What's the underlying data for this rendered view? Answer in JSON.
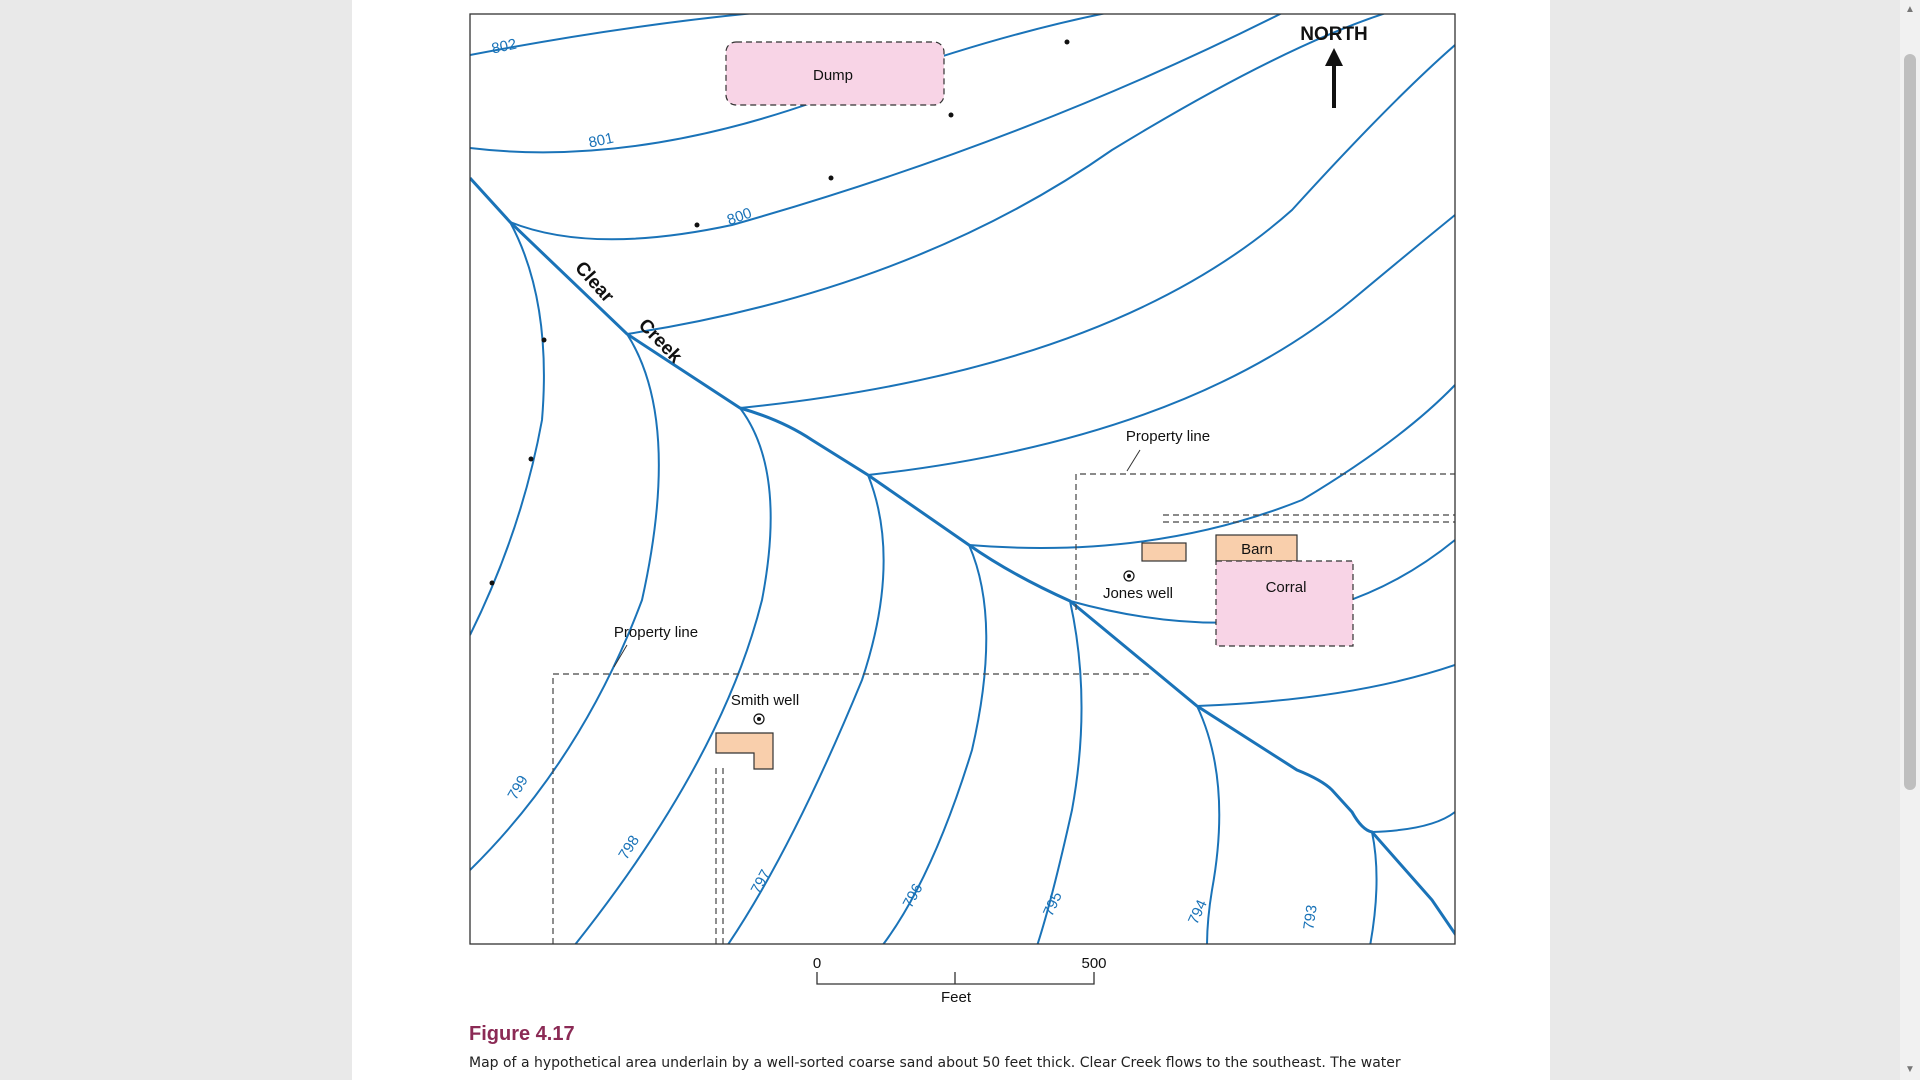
{
  "map": {
    "north_label": "NORTH",
    "creek_words": [
      "Clear",
      "Creek"
    ],
    "dump_label": "Dump",
    "barn_label": "Barn",
    "corral_label": "Corral",
    "jones_well_label": "Jones well",
    "smith_well_label": "Smith well",
    "property_line_label_1": "Property line",
    "property_line_label_2": "Property line",
    "contour_labels": [
      "802",
      "801",
      "800",
      "799",
      "798",
      "797",
      "796",
      "795",
      "794",
      "793"
    ],
    "scale": {
      "zero": "0",
      "end": "500",
      "unit": "Feet"
    },
    "colors": {
      "contour": "#1a73b8",
      "dump_fill": "#f8d4e6",
      "building_fill": "#f9cfac",
      "frame": "#333333"
    }
  },
  "caption": {
    "title": "Figure 4.17",
    "text": "Map of a hypothetical area underlain by a well-sorted coarse sand about 50 feet thick. Clear Creek flows to the southeast. The water"
  }
}
